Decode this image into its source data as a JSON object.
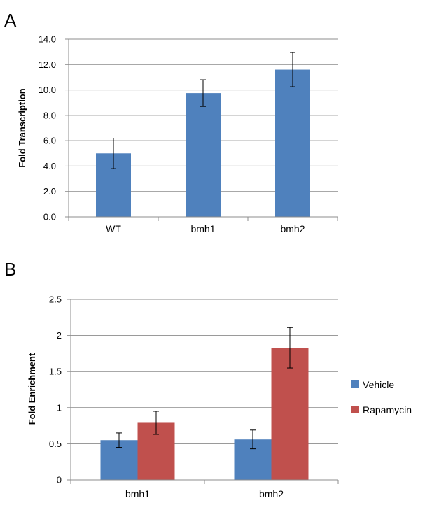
{
  "colors": {
    "vehicle": "#4f81bd",
    "rapamycin": "#c0504d",
    "grid": "#8c8c8c",
    "axis": "#8c8c8c"
  },
  "chart_data": [
    {
      "panel": "A",
      "type": "bar",
      "ylabel": "Fold Transcription",
      "categories": [
        "WT",
        "bmh1",
        "bmh2"
      ],
      "ylim": [
        0,
        14
      ],
      "ytick_labels": [
        "0.0",
        "2.0",
        "4.0",
        "6.0",
        "8.0",
        "10.0",
        "12.0",
        "14.0"
      ],
      "grid": true,
      "series": [
        {
          "values": [
            5.0,
            9.75,
            11.6
          ],
          "errors": [
            1.2,
            1.05,
            1.35
          ]
        }
      ]
    },
    {
      "panel": "B",
      "type": "bar",
      "ylabel": "Fold Enrichment",
      "categories": [
        "bmh1",
        "bmh2"
      ],
      "ylim": [
        0,
        2.5
      ],
      "ytick_labels": [
        "0",
        "0.5",
        "1",
        "1.5",
        "2",
        "2.5"
      ],
      "grid": true,
      "legend": "right",
      "series": [
        {
          "name": "Vehicle",
          "values": [
            0.55,
            0.56
          ],
          "errors": [
            0.1,
            0.13
          ]
        },
        {
          "name": "Rapamycin",
          "values": [
            0.79,
            1.83
          ],
          "errors": [
            0.16,
            0.28
          ]
        }
      ]
    }
  ]
}
